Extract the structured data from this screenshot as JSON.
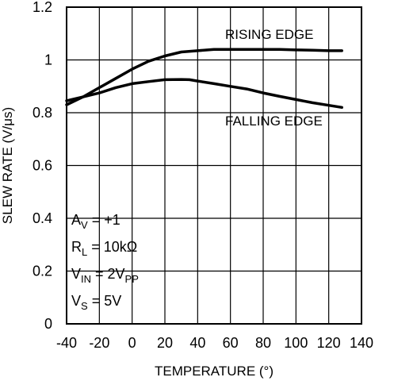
{
  "chart_data": {
    "type": "line",
    "title": "",
    "xlabel": "TEMPERATURE (°)",
    "ylabel": "SLEW RATE (V/μs)",
    "xlim": [
      -40,
      140
    ],
    "ylim": [
      0,
      1.2
    ],
    "x_ticks": [
      -40,
      -20,
      0,
      20,
      40,
      60,
      80,
      100,
      120,
      140
    ],
    "y_ticks": [
      0,
      0.2,
      0.4,
      0.6,
      0.8,
      1,
      1.2
    ],
    "y_tick_labels": [
      "0",
      "0.2",
      "0.4",
      "0.6",
      "0.8",
      "1",
      "1.2"
    ],
    "grid": true,
    "series": [
      {
        "name": "RISING EDGE",
        "x": [
          -40,
          -30,
          -20,
          -10,
          0,
          10,
          20,
          30,
          40,
          50,
          60,
          70,
          80,
          90,
          100,
          110,
          120,
          128
        ],
        "y": [
          0.83,
          0.86,
          0.895,
          0.93,
          0.965,
          0.995,
          1.015,
          1.03,
          1.035,
          1.04,
          1.04,
          1.04,
          1.04,
          1.04,
          1.038,
          1.037,
          1.035,
          1.035
        ]
      },
      {
        "name": "FALLING EDGE",
        "x": [
          -40,
          -30,
          -20,
          -10,
          0,
          10,
          20,
          30,
          35,
          40,
          50,
          60,
          70,
          80,
          90,
          100,
          110,
          120,
          128
        ],
        "y": [
          0.845,
          0.86,
          0.875,
          0.895,
          0.91,
          0.918,
          0.925,
          0.926,
          0.925,
          0.92,
          0.91,
          0.9,
          0.89,
          0.875,
          0.862,
          0.85,
          0.838,
          0.828,
          0.82
        ]
      }
    ],
    "conditions": [
      {
        "main": "A",
        "sub": "V",
        "rest": " = +1"
      },
      {
        "main": "R",
        "sub": "L",
        "rest": " = 10kΩ"
      },
      {
        "main": "V",
        "sub": "IN",
        "rest": " = 2V",
        "sub2": "PP"
      },
      {
        "main": "V",
        "sub": "S",
        "rest": " = 5V"
      }
    ]
  }
}
